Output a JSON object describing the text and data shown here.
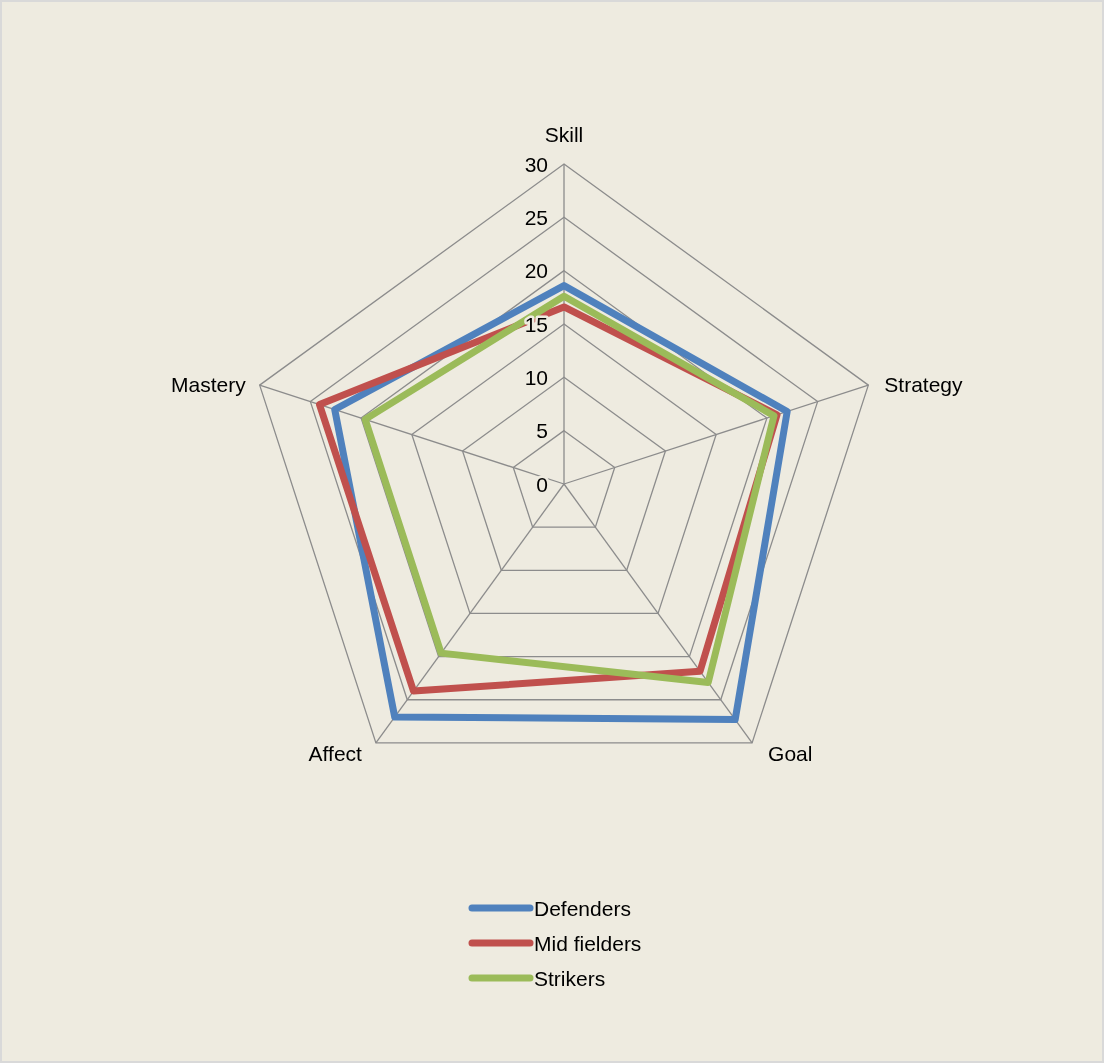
{
  "chart_data": {
    "type": "radar",
    "categories": [
      "Skill",
      "Strategy",
      "Goal",
      "Affect",
      "Mastery"
    ],
    "series": [
      {
        "name": "Defenders",
        "color": "#4f81bd",
        "values": [
          18.6,
          22,
          27.3,
          27,
          22.6
        ]
      },
      {
        "name": "Mid fielders",
        "color": "#c0504d",
        "values": [
          16.6,
          21,
          21.7,
          24,
          24.1
        ]
      },
      {
        "name": "Strikers",
        "color": "#9bbb59",
        "values": [
          17.6,
          20.7,
          23,
          19.6,
          19.6
        ]
      }
    ],
    "ylim": [
      0,
      30
    ],
    "yticks": [
      0,
      5,
      10,
      15,
      20,
      25,
      30
    ],
    "grid": true,
    "legend": "bottom"
  }
}
